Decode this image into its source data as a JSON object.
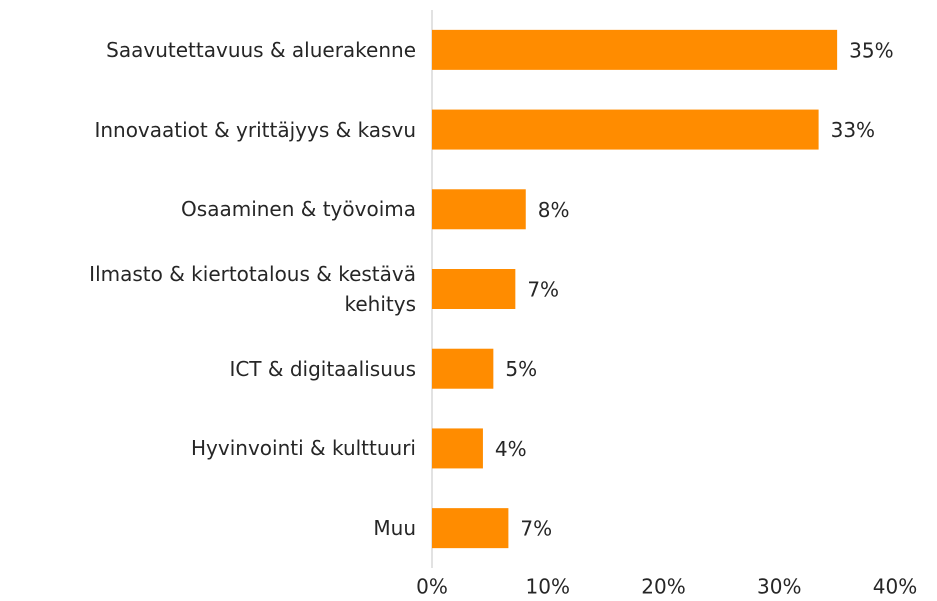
{
  "chart_data": {
    "type": "bar",
    "orientation": "horizontal",
    "categories": [
      "Saavutettavuus & aluerakenne",
      "Innovaatiot & yrittäjyys & kasvu",
      "Osaaminen & työvoima",
      "Ilmasto & kiertotalous & kestävä kehitys",
      "ICT & digitaalisuus",
      "Hyvinvointi & kulttuuri",
      "Muu"
    ],
    "values": [
      35,
      33.4,
      8.1,
      7.2,
      5.3,
      4.4,
      6.6
    ],
    "value_labels": [
      "35%",
      "33%",
      "8%",
      "7%",
      "5%",
      "4%",
      "7%"
    ],
    "color": "#ff8c00",
    "xlim": [
      0,
      40
    ],
    "xticks": [
      {
        "value": 0,
        "label": "0%"
      },
      {
        "value": 10,
        "label": "10%"
      },
      {
        "value": 20,
        "label": "20%"
      },
      {
        "value": 30,
        "label": "30%"
      },
      {
        "value": 40,
        "label": "40%"
      }
    ],
    "grid": false
  }
}
